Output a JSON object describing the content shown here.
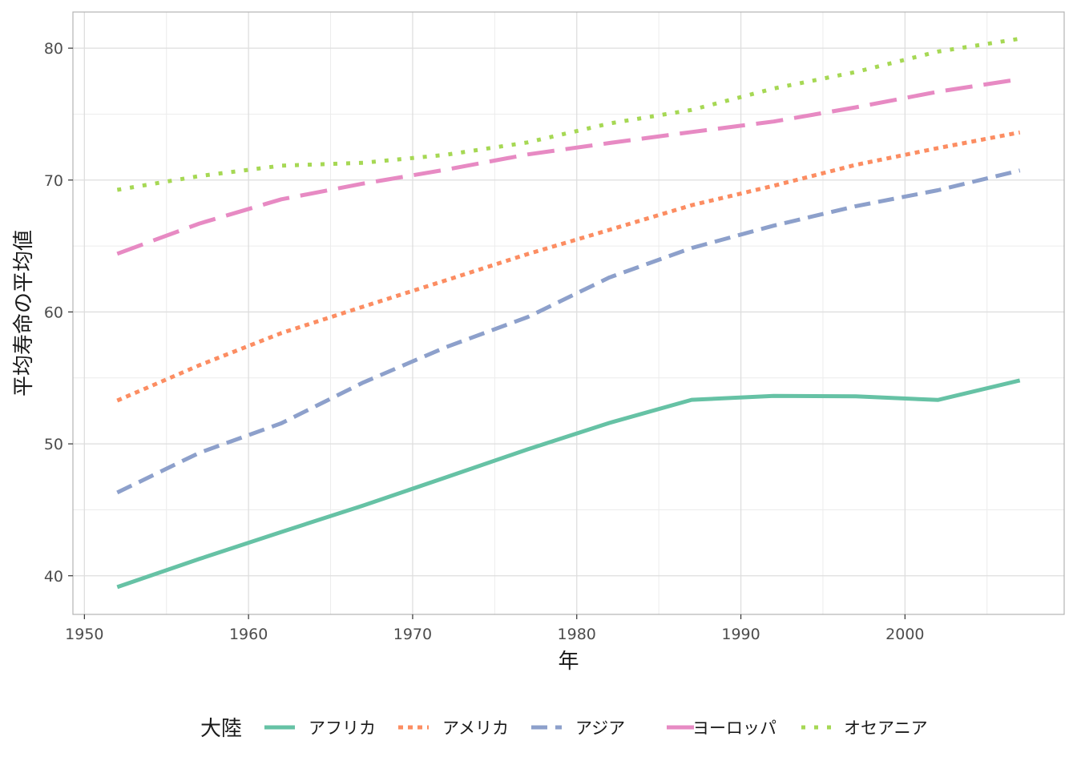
{
  "chart_data": {
    "type": "line",
    "xlabel": "年",
    "ylabel": "平均寿命の平均値",
    "xlim": [
      1949.3,
      2009.7
    ],
    "ylim": [
      37.07,
      82.74
    ],
    "x_ticks": [
      1950,
      1960,
      1970,
      1980,
      1990,
      2000
    ],
    "y_ticks": [
      40,
      50,
      60,
      70,
      80
    ],
    "grid": true,
    "legend": {
      "title": "大陸",
      "position": "bottom"
    },
    "x": [
      1952,
      1957,
      1962,
      1967,
      1972,
      1977,
      1982,
      1987,
      1992,
      1997,
      2002,
      2007
    ],
    "series": [
      {
        "name": "アフリカ",
        "color": "#66c2a5",
        "dash": "solid",
        "values": [
          39.14,
          41.27,
          43.32,
          45.33,
          47.45,
          49.58,
          51.59,
          53.34,
          53.63,
          53.6,
          53.33,
          54.81
        ]
      },
      {
        "name": "アメリカ",
        "color": "#fc8d62",
        "dash": "dotted",
        "values": [
          53.28,
          55.96,
          58.4,
          60.41,
          62.39,
          64.39,
          66.23,
          68.09,
          69.57,
          71.15,
          72.42,
          73.61
        ]
      },
      {
        "name": "アジア",
        "color": "#8da0cb",
        "dash": "dashed",
        "values": [
          46.31,
          49.32,
          51.56,
          54.66,
          57.32,
          59.61,
          62.62,
          64.85,
          66.54,
          68.02,
          69.23,
          70.73
        ]
      },
      {
        "name": "ヨーロッパ",
        "color": "#e78ac3",
        "dash": "longdash",
        "values": [
          64.41,
          66.7,
          68.54,
          69.74,
          70.78,
          71.94,
          72.81,
          73.64,
          74.44,
          75.51,
          76.7,
          77.65
        ]
      },
      {
        "name": "オセアニア",
        "color": "#a6d854",
        "dash": "dotted-fine",
        "values": [
          69.26,
          70.3,
          71.09,
          71.31,
          71.91,
          72.85,
          74.29,
          75.32,
          76.94,
          78.19,
          79.74,
          80.72
        ]
      }
    ]
  }
}
